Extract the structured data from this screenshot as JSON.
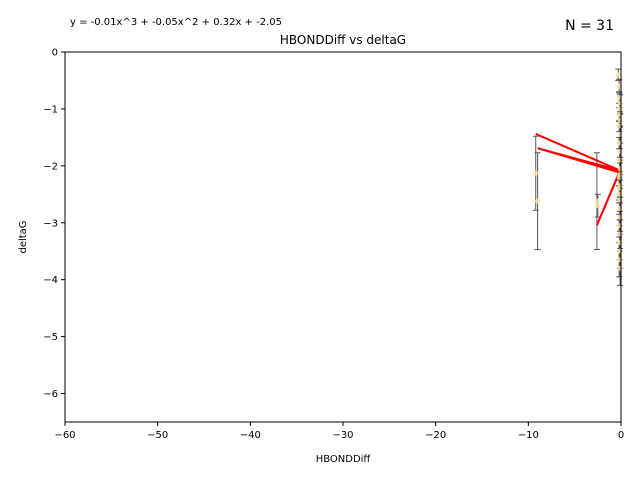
{
  "chart_data": {
    "type": "scatter",
    "title": "HBONDDiff vs deltaG",
    "xlabel": "HBONDDiff",
    "ylabel": "deltaG",
    "equation": "y = -0.01x^3 + -0.05x^2 + 0.32x + -2.05",
    "n_label": "N = 31",
    "xlim": [
      -60,
      0
    ],
    "ylim": [
      -6.5,
      0
    ],
    "xticks": [
      -60,
      -50,
      -40,
      -30,
      -20,
      -10,
      0
    ],
    "yticks": [
      0,
      -1,
      -2,
      -3,
      -4,
      -5,
      -6
    ],
    "xtick_labels": [
      "−60",
      "−50",
      "−40",
      "−30",
      "−20",
      "−10",
      "0"
    ],
    "ytick_labels": [
      "0",
      "−1",
      "−2",
      "−3",
      "−4",
      "−5",
      "−6"
    ],
    "grid": false,
    "points": [
      {
        "x": -9.2,
        "y": -2.13,
        "err": 0.65
      },
      {
        "x": -9.0,
        "y": -2.62,
        "err": 0.85
      },
      {
        "x": -2.6,
        "y": -2.62,
        "err": 0.85
      },
      {
        "x": -2.5,
        "y": -2.7,
        "err": 0.2
      },
      {
        "x": -0.3,
        "y": -0.4,
        "err": 0.1
      },
      {
        "x": -0.2,
        "y": -0.6,
        "err": 0.12
      },
      {
        "x": -0.2,
        "y": -0.8,
        "err": 0.1
      },
      {
        "x": -0.15,
        "y": -1.0,
        "err": 0.1
      },
      {
        "x": -0.1,
        "y": -1.2,
        "err": 0.12
      },
      {
        "x": -0.2,
        "y": -1.3,
        "err": 0.1
      },
      {
        "x": -0.1,
        "y": -1.45,
        "err": 0.15
      },
      {
        "x": -0.2,
        "y": -1.6,
        "err": 0.1
      },
      {
        "x": -0.1,
        "y": -1.75,
        "err": 0.15
      },
      {
        "x": -0.15,
        "y": -1.9,
        "err": 0.2
      },
      {
        "x": -0.1,
        "y": -2.05,
        "err": 0.2
      },
      {
        "x": -0.2,
        "y": -2.2,
        "err": 0.15
      },
      {
        "x": -0.1,
        "y": -2.35,
        "err": 0.2
      },
      {
        "x": -0.2,
        "y": -2.5,
        "err": 0.15
      },
      {
        "x": -0.1,
        "y": -2.6,
        "err": 0.2
      },
      {
        "x": -0.15,
        "y": -2.75,
        "err": 0.2
      },
      {
        "x": -0.1,
        "y": -2.9,
        "err": 0.25
      },
      {
        "x": -0.2,
        "y": -3.05,
        "err": 0.2
      },
      {
        "x": -0.1,
        "y": -3.2,
        "err": 0.25
      },
      {
        "x": -0.15,
        "y": -3.35,
        "err": 0.3
      },
      {
        "x": -0.1,
        "y": -3.5,
        "err": 0.3
      },
      {
        "x": -0.2,
        "y": -3.65,
        "err": 0.3
      },
      {
        "x": -0.1,
        "y": -3.8,
        "err": 0.3
      },
      {
        "x": -0.1,
        "y": -0.9,
        "err": 0.15
      },
      {
        "x": -0.2,
        "y": -1.1,
        "err": 0.12
      },
      {
        "x": -0.1,
        "y": -2.15,
        "err": 0.2
      },
      {
        "x": -0.2,
        "y": -2.4,
        "err": 0.2
      }
    ],
    "fit_path_x": [
      -9.2,
      -0.1,
      -9.0,
      -0.2,
      -2.6,
      -0.1,
      -2.5,
      0.0
    ],
    "colors": {
      "point": "#ffe2a0",
      "errorbar": "#555555",
      "fit": "#ff0000",
      "axis": "#000000"
    }
  }
}
